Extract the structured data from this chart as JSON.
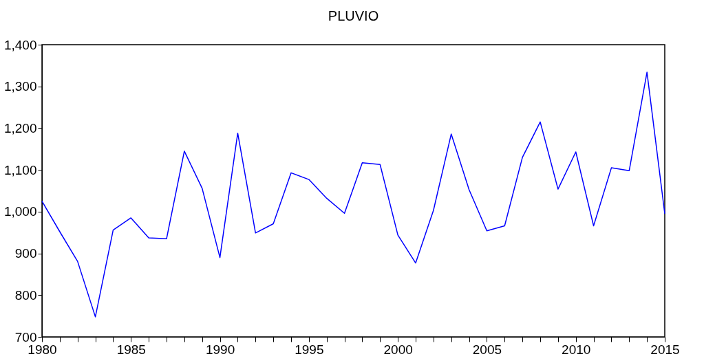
{
  "chart_data": {
    "type": "line",
    "title": "PLUVIO",
    "x": [
      1980,
      1981,
      1982,
      1983,
      1984,
      1985,
      1986,
      1987,
      1988,
      1989,
      1990,
      1991,
      1992,
      1993,
      1994,
      1995,
      1996,
      1997,
      1998,
      1999,
      2000,
      2001,
      2002,
      2003,
      2004,
      2005,
      2006,
      2007,
      2008,
      2009,
      2010,
      2011,
      2012,
      2013,
      2014,
      2015
    ],
    "series": [
      {
        "color": "#0000ff",
        "values": [
          1025,
          952,
          881,
          748,
          956,
          985,
          937,
          935,
          1145,
          1056,
          890,
          1188,
          949,
          971,
          1093,
          1077,
          1032,
          996,
          1117,
          1113,
          944,
          877,
          1003,
          1186,
          1053,
          954,
          966,
          1130,
          1215,
          1054,
          1143,
          966,
          1105,
          1098,
          1334,
          995
        ]
      }
    ],
    "xlim": [
      1980,
      2015
    ],
    "xticks": [
      1980,
      {
        "value": 1981,
        "label": null
      },
      {
        "value": 1982,
        "label": null
      },
      {
        "value": 1983,
        "label": null
      },
      {
        "value": 1984,
        "label": null
      },
      1985,
      {
        "value": 1986,
        "label": null
      },
      {
        "value": 1987,
        "label": null
      },
      {
        "value": 1988,
        "label": null
      },
      {
        "value": 1989,
        "label": null
      },
      1990,
      {
        "value": 1991,
        "label": null
      },
      {
        "value": 1992,
        "label": null
      },
      {
        "value": 1993,
        "label": null
      },
      {
        "value": 1994,
        "label": null
      },
      1995,
      {
        "value": 1996,
        "label": null
      },
      {
        "value": 1997,
        "label": null
      },
      {
        "value": 1998,
        "label": null
      },
      {
        "value": 1999,
        "label": null
      },
      2000,
      {
        "value": 2001,
        "label": null
      },
      {
        "value": 2002,
        "label": null
      },
      {
        "value": 2003,
        "label": null
      },
      {
        "value": 2004,
        "label": null
      },
      2005,
      {
        "value": 2006,
        "label": null
      },
      {
        "value": 2007,
        "label": null
      },
      {
        "value": 2008,
        "label": null
      },
      {
        "value": 2009,
        "label": null
      },
      2010,
      {
        "value": 2011,
        "label": null
      },
      {
        "value": 2012,
        "label": null
      },
      {
        "value": 2013,
        "label": null
      },
      {
        "value": 2014,
        "label": null
      },
      2015
    ],
    "ylim": [
      700,
      1400
    ],
    "yticks": [
      700,
      800,
      900,
      {
        "value": 1000,
        "label": "1,000"
      },
      {
        "value": 1100,
        "label": "1,100"
      },
      {
        "value": 1200,
        "label": "1,200"
      },
      {
        "value": 1300,
        "label": "1,300"
      },
      {
        "value": 1400,
        "label": "1,400"
      }
    ],
    "grid": false,
    "legend": false,
    "marker": "none",
    "line_style": "solid"
  }
}
